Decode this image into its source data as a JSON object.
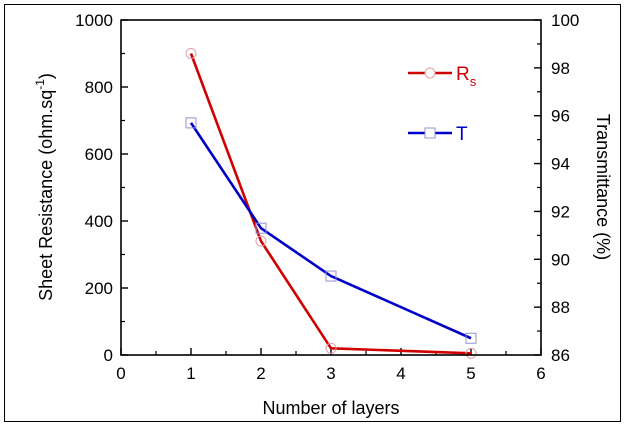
{
  "chart_data": {
    "type": "line",
    "xlabel": "Number of layers",
    "ylabel_left_main": "Sheet Resistance (ohm.sq",
    "ylabel_left_sup": "-1",
    "ylabel_left_end": ")",
    "ylabel_right": "Transmittance (%)",
    "xlim": [
      0,
      6
    ],
    "x_ticks": [
      "0",
      "1",
      "2",
      "3",
      "4",
      "5",
      "6"
    ],
    "ylim_left": [
      0,
      1000
    ],
    "y_left_ticks": [
      "0",
      "200",
      "400",
      "600",
      "800",
      "1000"
    ],
    "ylim_right": [
      86,
      100
    ],
    "y_right_ticks": [
      "86",
      "88",
      "90",
      "92",
      "94",
      "96",
      "98",
      "100"
    ],
    "x": [
      1,
      2,
      3,
      5
    ],
    "series": [
      {
        "name_main": "R",
        "name_sub": "s",
        "axis": "left",
        "marker": "circle",
        "color": "#d10000",
        "values": [
          900,
          340,
          20,
          5
        ]
      },
      {
        "name_main": "T",
        "name_sub": "",
        "axis": "right",
        "marker": "square",
        "color": "#0000c8",
        "values": [
          95.7,
          91.3,
          89.3,
          86.7
        ]
      }
    ],
    "legend_position": "top-right"
  }
}
